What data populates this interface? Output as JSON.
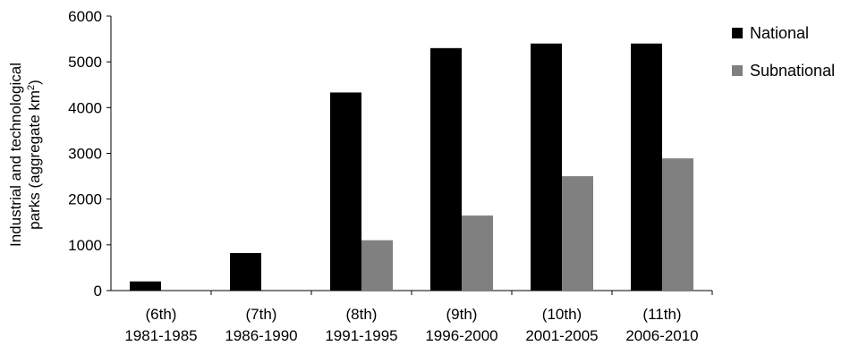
{
  "chart_data": {
    "type": "bar",
    "title": "",
    "xlabel": "",
    "ylabel_line1": "Industrial and technological",
    "ylabel_line2_prefix": "parks (aggregate km",
    "ylabel_sup": "2",
    "ylabel_line2_suffix": ")",
    "ylim": [
      0,
      6000
    ],
    "yticks": [
      0,
      1000,
      2000,
      3000,
      4000,
      5000,
      6000
    ],
    "categories": [
      {
        "top": "(6th)",
        "bottom": "1981-1985"
      },
      {
        "top": "(7th)",
        "bottom": "1986-1990"
      },
      {
        "top": "(8th)",
        "bottom": "1991-1995"
      },
      {
        "top": "(9th)",
        "bottom": "1996-2000"
      },
      {
        "top": "(10th)",
        "bottom": "2001-2005"
      },
      {
        "top": "(11th)",
        "bottom": "2006-2010"
      }
    ],
    "series": [
      {
        "name": "National",
        "color": "#000000",
        "values": [
          200,
          820,
          4330,
          5300,
          5400,
          5400
        ]
      },
      {
        "name": "Subnational",
        "color": "#808080",
        "values": [
          0,
          0,
          1100,
          1640,
          2500,
          2890
        ]
      }
    ],
    "legend_position": "top-right",
    "grid": false
  }
}
